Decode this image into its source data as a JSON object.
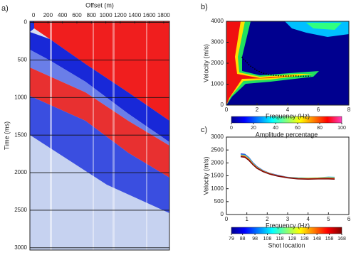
{
  "chart_data": [
    {
      "type": "image",
      "panel_label": "a)",
      "xlabel": "Offset (m)",
      "ylabel": "Time (ms)",
      "xlim": [
        -50,
        1880
      ],
      "ylim": [
        -15,
        3030
      ],
      "xticks": [
        0,
        200,
        400,
        600,
        800,
        1000,
        1200,
        1400,
        1600,
        1800
      ],
      "yticks": [
        0,
        500,
        1000,
        1500,
        2000,
        2500,
        3000
      ],
      "grid": true
    },
    {
      "type": "heatmap",
      "panel_label": "b)",
      "xlabel": "Frequency (Hz)",
      "ylabel": "Velocity (m/s)",
      "xlim": [
        0,
        8
      ],
      "ylim": [
        0,
        4000
      ],
      "xticks": [
        0,
        2,
        4,
        6,
        8
      ],
      "yticks": [
        0,
        1000,
        2000,
        3000,
        4000
      ],
      "x": [
        1,
        1.5,
        2,
        2.5,
        3,
        3.5,
        4,
        4.5,
        5,
        5.5
      ],
      "values": [
        2300,
        1900,
        1650,
        1500,
        1430,
        1400,
        1390,
        1390,
        1380,
        1380
      ],
      "colorbar": {
        "label": "Amplitude percentage",
        "lim": [
          0,
          100
        ],
        "ticks": [
          0,
          20,
          40,
          60,
          80,
          100
        ]
      }
    },
    {
      "type": "line",
      "panel_label": "c)",
      "xlabel": "Frequency (Hz)",
      "ylabel": "Velocity (m/s)",
      "xlim": [
        0,
        6
      ],
      "ylim": [
        0,
        3000
      ],
      "xticks": [
        0,
        1,
        2,
        3,
        4,
        5,
        6
      ],
      "yticks": [
        0,
        500,
        1000,
        1500,
        2000,
        2500,
        3000
      ],
      "x": [
        0.7,
        0.9,
        1.1,
        1.3,
        1.5,
        1.8,
        2.1,
        2.5,
        3,
        3.5,
        4,
        4.5,
        5,
        5.3
      ],
      "series": [
        {
          "color": "#1f3fd0",
          "values": [
            2350,
            2330,
            2200,
            2000,
            1850,
            1700,
            1600,
            1520,
            1440,
            1400,
            1390,
            1400,
            1420,
            1400
          ]
        },
        {
          "color": "#2ec4e6",
          "values": [
            2300,
            2300,
            2180,
            1980,
            1830,
            1690,
            1590,
            1510,
            1440,
            1420,
            1410,
            1420,
            1450,
            1440
          ]
        },
        {
          "color": "#e6d21e",
          "values": [
            2280,
            2270,
            2150,
            1960,
            1820,
            1680,
            1590,
            1500,
            1430,
            1400,
            1400,
            1410,
            1420,
            1410
          ]
        },
        {
          "color": "#e02a1a",
          "values": [
            2260,
            2240,
            2120,
            1940,
            1800,
            1670,
            1580,
            1500,
            1430,
            1390,
            1380,
            1390,
            1400,
            1390
          ]
        },
        {
          "color": "#7a0a0a",
          "values": [
            2240,
            2220,
            2100,
            1930,
            1790,
            1660,
            1570,
            1490,
            1420,
            1380,
            1370,
            1380,
            1380,
            1370
          ]
        }
      ],
      "colorbar": {
        "label": "Shot location",
        "lim": [
          79,
          168
        ],
        "ticks": [
          79,
          88,
          98,
          108,
          118,
          128,
          138,
          148,
          158,
          168
        ]
      }
    }
  ]
}
